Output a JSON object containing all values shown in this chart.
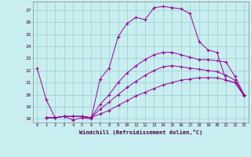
{
  "xlabel": "Windchill (Refroidissement éolien,°C)",
  "bg_color": "#c8eef0",
  "line_color": "#990099",
  "grid_color": "#99cccc",
  "xlim": [
    -0.5,
    23.5
  ],
  "ylim": [
    17.7,
    27.7
  ],
  "yticks": [
    18,
    19,
    20,
    21,
    22,
    23,
    24,
    25,
    26,
    27
  ],
  "xticks": [
    0,
    1,
    2,
    3,
    4,
    5,
    6,
    7,
    8,
    9,
    10,
    11,
    12,
    13,
    14,
    15,
    16,
    17,
    18,
    19,
    20,
    21,
    22,
    23
  ],
  "series": [
    {
      "x": [
        0,
        1,
        2,
        3,
        4,
        5,
        6,
        7,
        8,
        9,
        10,
        11,
        12,
        13,
        14,
        15,
        16,
        17,
        18,
        19,
        20,
        21,
        22,
        23
      ],
      "y": [
        22.2,
        19.6,
        18.1,
        18.2,
        17.9,
        18.1,
        18.0,
        21.3,
        22.2,
        24.8,
        25.9,
        26.4,
        26.2,
        27.2,
        27.3,
        27.2,
        27.1,
        26.7,
        24.4,
        23.7,
        23.5,
        21.2,
        21.0,
        20.0
      ]
    },
    {
      "x": [
        1,
        2,
        3,
        4,
        5,
        6,
        7,
        8,
        9,
        10,
        11,
        12,
        13,
        14,
        15,
        16,
        17,
        18,
        19,
        20,
        21,
        22,
        23
      ],
      "y": [
        18.1,
        18.1,
        18.2,
        18.2,
        18.2,
        18.1,
        19.2,
        20.0,
        21.0,
        21.8,
        22.4,
        22.9,
        23.3,
        23.5,
        23.5,
        23.3,
        23.1,
        22.9,
        22.9,
        22.8,
        22.7,
        21.5,
        20.0
      ]
    },
    {
      "x": [
        1,
        2,
        3,
        4,
        5,
        6,
        7,
        8,
        9,
        10,
        11,
        12,
        13,
        14,
        15,
        16,
        17,
        18,
        19,
        20,
        21,
        22,
        23
      ],
      "y": [
        18.1,
        18.1,
        18.2,
        18.2,
        18.2,
        18.1,
        18.8,
        19.4,
        20.0,
        20.6,
        21.1,
        21.6,
        22.0,
        22.3,
        22.4,
        22.3,
        22.2,
        22.1,
        22.0,
        21.9,
        21.6,
        21.2,
        20.0
      ]
    },
    {
      "x": [
        1,
        2,
        3,
        4,
        5,
        6,
        7,
        8,
        9,
        10,
        11,
        12,
        13,
        14,
        15,
        16,
        17,
        18,
        19,
        20,
        21,
        22,
        23
      ],
      "y": [
        18.1,
        18.1,
        18.2,
        18.2,
        18.2,
        18.1,
        18.4,
        18.7,
        19.1,
        19.5,
        19.9,
        20.2,
        20.5,
        20.8,
        21.0,
        21.2,
        21.3,
        21.4,
        21.4,
        21.4,
        21.2,
        21.0,
        19.9
      ]
    }
  ]
}
